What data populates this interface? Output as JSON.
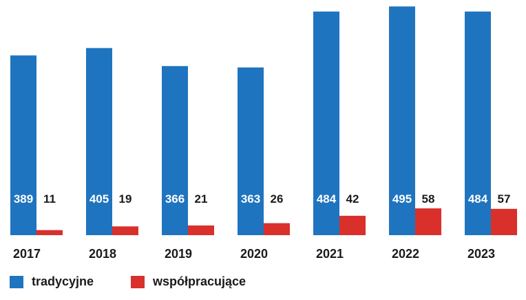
{
  "chart_data": {
    "type": "bar",
    "categories": [
      "2017",
      "2018",
      "2019",
      "2020",
      "2021",
      "2022",
      "2023"
    ],
    "series": [
      {
        "name": "tradycyjne",
        "values": [
          389,
          405,
          366,
          363,
          484,
          495,
          484
        ],
        "color": "#1f74bf"
      },
      {
        "name": "współpracujące",
        "values": [
          11,
          19,
          21,
          26,
          42,
          58,
          57
        ],
        "color": "#d9302c"
      }
    ],
    "data_labels": true,
    "legend_position": "bottom-left",
    "grid": false,
    "ylim": [
      0,
      500
    ]
  }
}
